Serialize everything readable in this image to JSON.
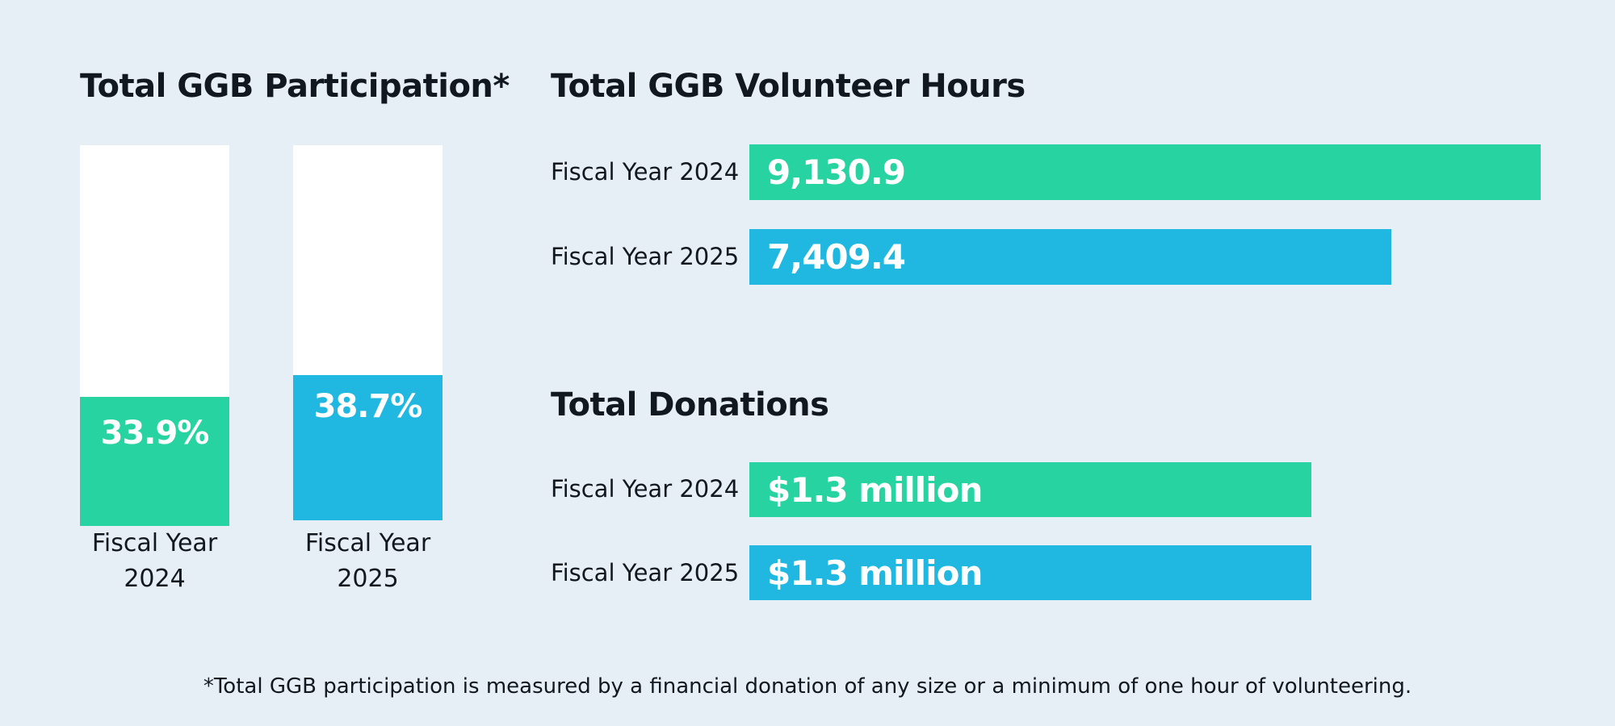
{
  "colors": {
    "fy2024": "#27d3a1",
    "fy2025": "#20b7e0",
    "background": "#e7eff6",
    "track": "#ffffff"
  },
  "chart_data": [
    {
      "type": "bar",
      "orientation": "vertical",
      "title": "Total GGB Participation*",
      "categories": [
        "Fiscal Year 2024",
        "Fiscal Year 2025"
      ],
      "category_lines": [
        [
          "Fiscal Year",
          "2024"
        ],
        [
          "Fiscal Year",
          "2025"
        ]
      ],
      "values": [
        33.9,
        38.7
      ],
      "value_labels": [
        "33.9%",
        "38.7%"
      ],
      "unit": "%",
      "ylim": [
        0,
        100
      ]
    },
    {
      "type": "bar",
      "orientation": "horizontal",
      "title": "Total GGB Volunteer Hours",
      "categories": [
        "Fiscal Year 2024",
        "Fiscal Year 2025"
      ],
      "values": [
        9130.9,
        7409.4
      ],
      "value_labels": [
        "9,130.9",
        "7,409.4"
      ],
      "xlim": [
        0,
        9130.9
      ]
    },
    {
      "type": "bar",
      "orientation": "horizontal",
      "title": "Total Donations",
      "categories": [
        "Fiscal Year 2024",
        "Fiscal Year 2025"
      ],
      "values": [
        1.3,
        1.3
      ],
      "value_labels": [
        "$1.3 million",
        "$1.3 million"
      ],
      "unit": "million USD",
      "xlim": [
        0,
        1.83
      ]
    }
  ],
  "footnote": "*Total GGB participation is measured by a financial donation of any size or a minimum of one hour of volunteering."
}
